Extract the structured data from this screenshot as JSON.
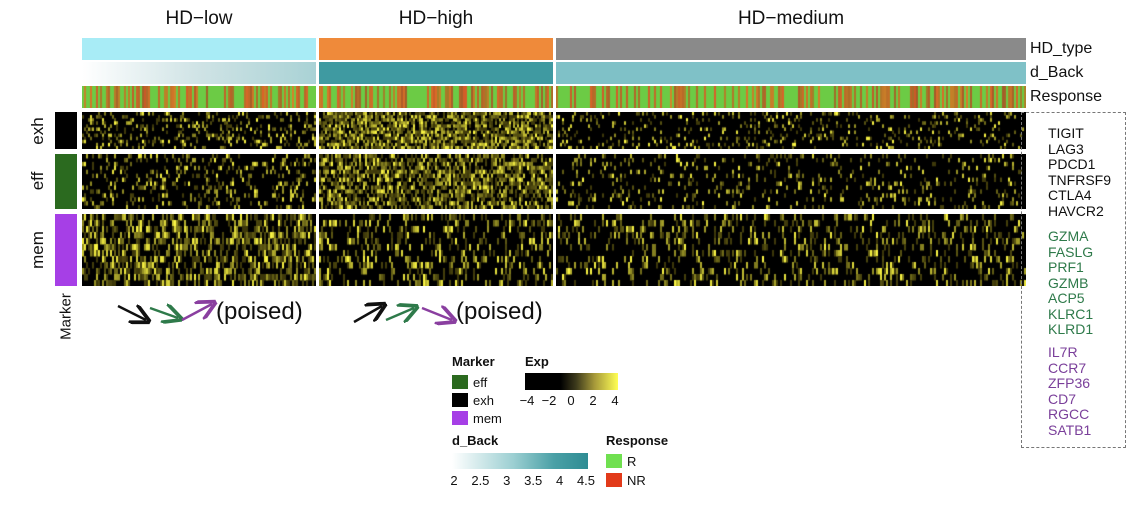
{
  "chart_data": {
    "type": "heatmap",
    "columns": [
      {
        "name": "HD−low",
        "dominant_markers": [
          "exh",
          "eff",
          "mem"
        ],
        "annotation_text": "(poised)"
      },
      {
        "name": "HD−high",
        "dominant_markers": [
          "exh",
          "eff",
          "mem"
        ],
        "annotation_text": "(poised)"
      },
      {
        "name": "HD−medium"
      }
    ],
    "annotation_tracks": [
      "HD_type",
      "d_Back",
      "Response"
    ],
    "row_groups": [
      {
        "name": "exh",
        "genes": [
          "TIGIT",
          "LAG3",
          "PDCD1",
          "TNFRSF9",
          "CTLA4",
          "HAVCR2"
        ],
        "color": "#000000"
      },
      {
        "name": "eff",
        "genes": [
          "GZMA",
          "FASLG",
          "PRF1",
          "GZMB",
          "ACP5",
          "KLRC1",
          "KLRD1"
        ],
        "color": "#2b6a1f"
      },
      {
        "name": "mem",
        "genes": [
          "IL7R",
          "CCR7",
          "ZFP36",
          "CD7",
          "RGCC",
          "SATB1"
        ],
        "color": "#a63fe6"
      }
    ],
    "row_group_axis_label": "Marker",
    "hd_type_colors": {
      "HD-low": "#a8ecf6",
      "HD-high": "#ef8a3a",
      "HD-medium": "#8a8a8a"
    },
    "gene_label_colors": {
      "exh": "#111111",
      "eff": "#2e7a4a",
      "mem": "#7a3f9a"
    },
    "legends": {
      "marker": {
        "title": "Marker",
        "items": [
          {
            "label": "eff",
            "color": "#2b6a1f"
          },
          {
            "label": "exh",
            "color": "#000000"
          },
          {
            "label": "mem",
            "color": "#a63fe6"
          }
        ]
      },
      "exp": {
        "title": "Exp",
        "ticks": [
          "−4",
          "−2",
          "0",
          "2",
          "4"
        ],
        "range": [
          -4,
          4
        ]
      },
      "d_back": {
        "title": "d_Back",
        "ticks": [
          "2",
          "2.5",
          "3",
          "3.5",
          "4",
          "4.5"
        ],
        "range": [
          2,
          4.5
        ],
        "low_color": "#ffffff",
        "high_color": "#2e8c93"
      },
      "response": {
        "title": "Response",
        "items": [
          {
            "label": "R",
            "color": "#70e050"
          },
          {
            "label": "NR",
            "color": "#e23a1a"
          }
        ]
      }
    },
    "arrow_colors": [
      "#111111",
      "#2e7a4a",
      "#8a3fa0"
    ]
  }
}
